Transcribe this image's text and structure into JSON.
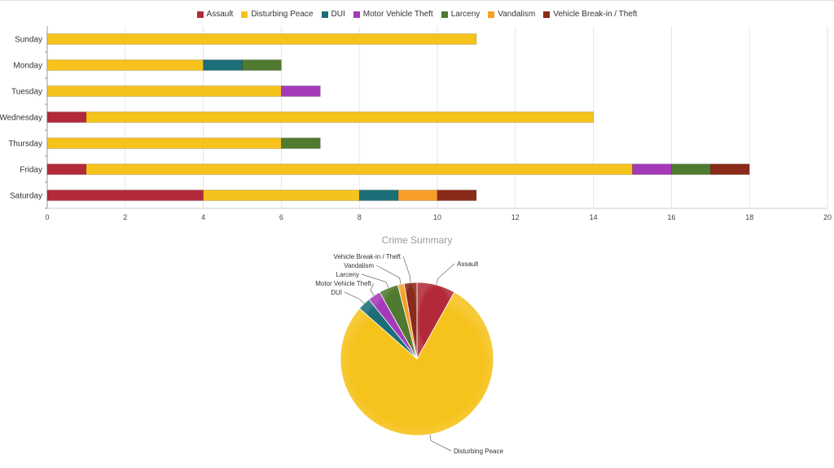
{
  "chart_data": [
    {
      "type": "bar",
      "orientation": "horizontal",
      "stacked": true,
      "categories": [
        "Sunday",
        "Monday",
        "Tuesday",
        "Wednesday",
        "Thursday",
        "Friday",
        "Saturday"
      ],
      "series": [
        {
          "name": "Assault",
          "color": "#b22a3a",
          "values": [
            0,
            0,
            0,
            1,
            0,
            1,
            4
          ]
        },
        {
          "name": "Disturbing Peace",
          "color": "#f6c21c",
          "values": [
            11,
            4,
            6,
            13,
            6,
            14,
            4
          ]
        },
        {
          "name": "DUI",
          "color": "#1c6e78",
          "values": [
            0,
            1,
            0,
            0,
            0,
            0,
            1
          ]
        },
        {
          "name": "Motor Vehicle Theft",
          "color": "#a43ab8",
          "values": [
            0,
            0,
            1,
            0,
            0,
            1,
            0
          ]
        },
        {
          "name": "Larceny",
          "color": "#4f7a2f",
          "values": [
            0,
            1,
            0,
            0,
            1,
            1,
            0
          ]
        },
        {
          "name": "Vandalism",
          "color": "#f89e28",
          "values": [
            0,
            0,
            0,
            0,
            0,
            0,
            1
          ]
        },
        {
          "name": "Vehicle Break-in / Theft",
          "color": "#8a2a18",
          "values": [
            0,
            0,
            0,
            0,
            0,
            1,
            1
          ]
        }
      ],
      "xlim": [
        0,
        20
      ],
      "xticks": [
        0,
        2,
        4,
        6,
        8,
        10,
        12,
        14,
        16,
        18,
        20
      ],
      "grid": true,
      "legend": "top-center"
    },
    {
      "type": "pie",
      "title": "Crime Summary",
      "slices": [
        {
          "label": "Assault",
          "value": 6,
          "color": "#b22a3a"
        },
        {
          "label": "Disturbing Peace",
          "value": 58,
          "color": "#f6c21c"
        },
        {
          "label": "DUI",
          "value": 2,
          "color": "#1c6e78"
        },
        {
          "label": "Motor Vehicle Theft",
          "value": 2,
          "color": "#a43ab8"
        },
        {
          "label": "Larceny",
          "value": 3,
          "color": "#4f7a2f"
        },
        {
          "label": "Vandalism",
          "value": 1,
          "color": "#f89e28"
        },
        {
          "label": "Vehicle Break-in / Theft",
          "value": 2,
          "color": "#8a2a18"
        }
      ]
    }
  ]
}
